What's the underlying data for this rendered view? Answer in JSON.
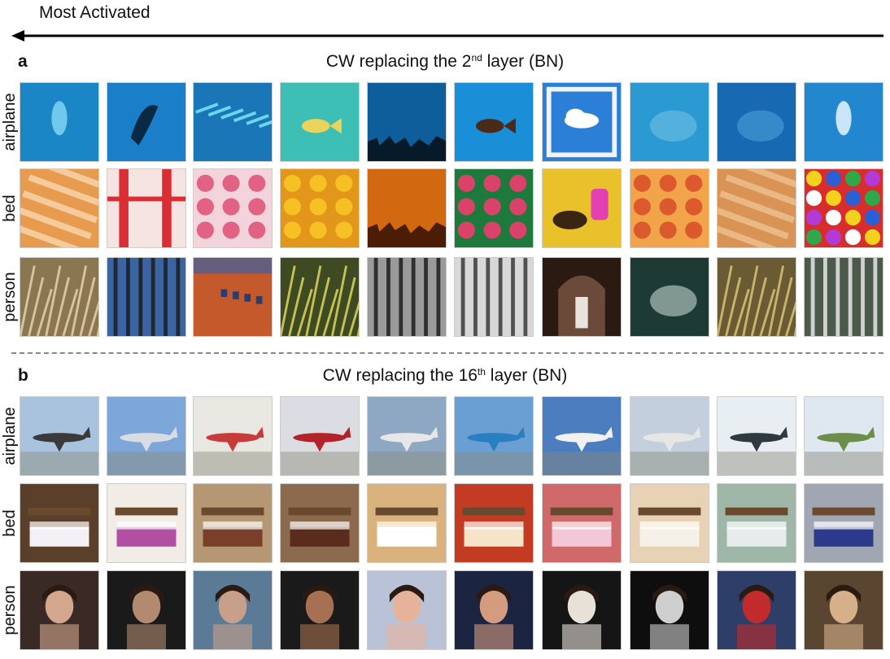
{
  "header": {
    "title": "Most Activated"
  },
  "panels": [
    {
      "letter": "a",
      "caption": {
        "pre": "CW  replacing the 2",
        "sup": "nd",
        "post": " layer (BN)"
      },
      "rows": [
        {
          "label": "airplane",
          "thumbs": [
            {
              "bg": "#1b86c6",
              "fg": "#7fd3f2",
              "shape": "diver"
            },
            {
              "bg": "#1a7ec9",
              "fg": "#0a2a44",
              "shape": "dolphin"
            },
            {
              "bg": "#1b76b8",
              "fg": "#7ef0ff",
              "shape": "rays"
            },
            {
              "bg": "#3dbfb6",
              "fg": "#e9d35a",
              "shape": "fish"
            },
            {
              "bg": "#0f5e9c",
              "fg": "#071a2a",
              "shape": "skyline"
            },
            {
              "bg": "#1a8ed6",
              "fg": "#4a2b1a",
              "shape": "fish"
            },
            {
              "bg": "#2c7fd6",
              "fg": "#ffffff",
              "shape": "cloud"
            },
            {
              "bg": "#2c9ad2",
              "fg": "#6fc2e5",
              "shape": "blob"
            },
            {
              "bg": "#1769b1",
              "fg": "#4aa2d8",
              "shape": "blob"
            },
            {
              "bg": "#2387d0",
              "fg": "#e7f4ff",
              "shape": "diver"
            }
          ]
        },
        {
          "label": "bed",
          "thumbs": [
            {
              "bg": "#e79b4f",
              "fg": "#fbe0c0",
              "shape": "stripes"
            },
            {
              "bg": "#f6e4e2",
              "fg": "#d92e33",
              "shape": "bars"
            },
            {
              "bg": "#f4d4dc",
              "fg": "#e0557a",
              "shape": "petals"
            },
            {
              "bg": "#e2961a",
              "fg": "#f7c526",
              "shape": "petals"
            },
            {
              "bg": "#d2680f",
              "fg": "#4b1c06",
              "shape": "skyline"
            },
            {
              "bg": "#1e7a3c",
              "fg": "#f03c6e",
              "shape": "petals"
            },
            {
              "bg": "#e8c12b",
              "fg": "#e53fb4",
              "shape": "bull"
            },
            {
              "bg": "#f2a44b",
              "fg": "#d8512a",
              "shape": "petals"
            },
            {
              "bg": "#d99355",
              "fg": "#f1c898",
              "shape": "stripes"
            },
            {
              "bg": "#d92d2d",
              "fg": "#f2d21d",
              "shape": "dots"
            }
          ]
        },
        {
          "label": "person",
          "thumbs": [
            {
              "bg": "#8a7650",
              "fg": "#d6c69d",
              "shape": "grass"
            },
            {
              "bg": "#3b64a2",
              "fg": "#1d1d1d",
              "shape": "trees"
            },
            {
              "bg": "#c45a2c",
              "fg": "#2a5fb8",
              "shape": "building"
            },
            {
              "bg": "#3d4a22",
              "fg": "#c7c054",
              "shape": "grass"
            },
            {
              "bg": "#9a9a9a",
              "fg": "#1c1c1c",
              "shape": "trees"
            },
            {
              "bg": "#d8d8d8",
              "fg": "#3a3a3a",
              "shape": "trees"
            },
            {
              "bg": "#2a1a12",
              "fg": "#e9e3de",
              "shape": "arch"
            },
            {
              "bg": "#1d3b34",
              "fg": "#c4d6d0",
              "shape": "blob"
            },
            {
              "bg": "#6a5b34",
              "fg": "#c9b46b",
              "shape": "grass"
            },
            {
              "bg": "#4c5a4c",
              "fg": "#e8e8e8",
              "shape": "trees"
            }
          ]
        }
      ]
    },
    {
      "letter": "b",
      "caption": {
        "pre": "CW  replacing the 16",
        "sup": "th",
        "post": " layer (BN)"
      },
      "rows": [
        {
          "label": "airplane",
          "thumbs": [
            {
              "bg": "#a9c3df",
              "fg": "#3a3a3a",
              "shape": "plane"
            },
            {
              "bg": "#7da6d9",
              "fg": "#d9dde3",
              "shape": "plane"
            },
            {
              "bg": "#e9e7e2",
              "fg": "#c73b3b",
              "shape": "plane"
            },
            {
              "bg": "#dcdde3",
              "fg": "#b3242a",
              "shape": "plane"
            },
            {
              "bg": "#8ea8c4",
              "fg": "#e7e7e7",
              "shape": "plane"
            },
            {
              "bg": "#6a9fd3",
              "fg": "#2a7fc0",
              "shape": "plane"
            },
            {
              "bg": "#4b7dbf",
              "fg": "#f1f1f1",
              "shape": "plane"
            },
            {
              "bg": "#c3cfdc",
              "fg": "#e6e6e6",
              "shape": "plane"
            },
            {
              "bg": "#e9eef3",
              "fg": "#2e3a40",
              "shape": "plane"
            },
            {
              "bg": "#dfe8f0",
              "fg": "#6d8e4a",
              "shape": "plane"
            }
          ]
        },
        {
          "label": "bed",
          "thumbs": [
            {
              "bg": "#5a3f2a",
              "fg": "#f3f0f6",
              "shape": "bed"
            },
            {
              "bg": "#f1ece6",
              "fg": "#b24fa3",
              "shape": "bed"
            },
            {
              "bg": "#b59774",
              "fg": "#7a3f2a",
              "shape": "bed"
            },
            {
              "bg": "#8b6a4e",
              "fg": "#5b2b1d",
              "shape": "bed"
            },
            {
              "bg": "#d9b27e",
              "fg": "#ffffff",
              "shape": "bed"
            },
            {
              "bg": "#c43b24",
              "fg": "#f6e4c8",
              "shape": "bed"
            },
            {
              "bg": "#d06a6a",
              "fg": "#f2c8d8",
              "shape": "bed"
            },
            {
              "bg": "#e7d2b5",
              "fg": "#f5f0e8",
              "shape": "bed"
            },
            {
              "bg": "#9fb7a9",
              "fg": "#e6ecec",
              "shape": "bed"
            },
            {
              "bg": "#a0a7b2",
              "fg": "#2b3a8a",
              "shape": "bed"
            }
          ]
        },
        {
          "label": "person",
          "thumbs": [
            {
              "bg": "#3a2a26",
              "fg": "#d3a78e",
              "shape": "face"
            },
            {
              "bg": "#1a1a1a",
              "fg": "#b28a70",
              "shape": "face"
            },
            {
              "bg": "#5a7a96",
              "fg": "#c8a08a",
              "shape": "face"
            },
            {
              "bg": "#1a1a1a",
              "fg": "#a87052",
              "shape": "face"
            },
            {
              "bg": "#b9c2d6",
              "fg": "#e7b29a",
              "shape": "face"
            },
            {
              "bg": "#1b2440",
              "fg": "#d59b7e",
              "shape": "face"
            },
            {
              "bg": "#151515",
              "fg": "#e8e1d8",
              "shape": "face"
            },
            {
              "bg": "#0e0e0e",
              "fg": "#cfcfcf",
              "shape": "face"
            },
            {
              "bg": "#2d3e68",
              "fg": "#c22b2b",
              "shape": "face"
            },
            {
              "bg": "#5a4530",
              "fg": "#d6b088",
              "shape": "face"
            }
          ]
        }
      ]
    }
  ]
}
